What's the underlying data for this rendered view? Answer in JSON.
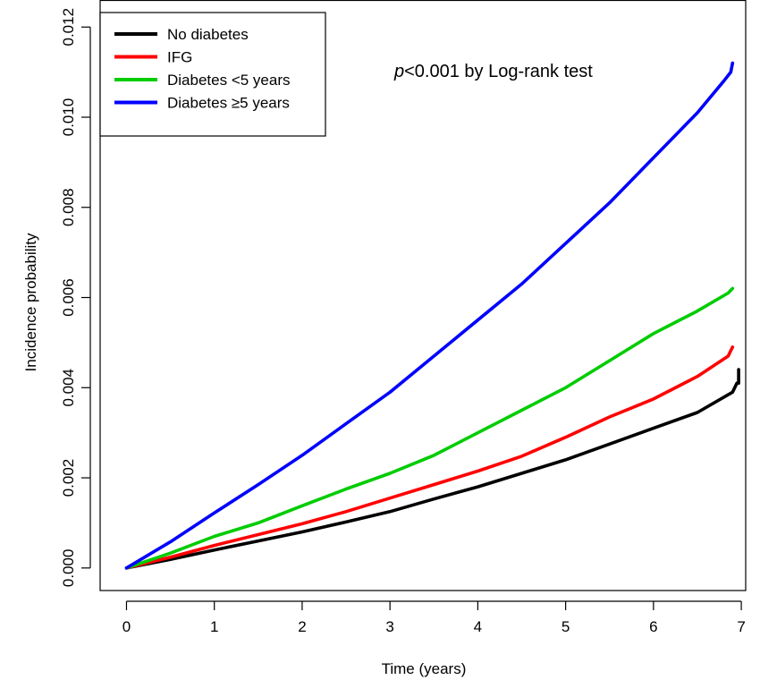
{
  "chart_data": {
    "type": "line",
    "title": "",
    "xlabel": "Time (years)",
    "ylabel": "Incidence probability",
    "xlim": [
      -0.3,
      7.05
    ],
    "ylim": [
      -0.0005,
      0.0126
    ],
    "xticks": [
      0,
      1,
      2,
      3,
      4,
      5,
      6,
      7
    ],
    "xtick_labels": [
      "0",
      "1",
      "2",
      "3",
      "4",
      "5",
      "6",
      "7"
    ],
    "yticks": [
      0.0,
      0.002,
      0.004,
      0.006,
      0.008,
      0.01,
      0.012
    ],
    "ytick_labels": [
      "0.000",
      "0.002",
      "0.004",
      "0.006",
      "0.008",
      "0.010",
      "0.012"
    ],
    "grid": false,
    "legend_position": "top-left",
    "annotation": {
      "prefix": "p",
      "text": "<0.001 by Log-rank test"
    },
    "series": [
      {
        "name": "No diabetes",
        "color": "#000000",
        "x": [
          0,
          0.5,
          1,
          1.5,
          2,
          2.5,
          3,
          3.5,
          4,
          4.5,
          5,
          5.5,
          6,
          6.5,
          6.9,
          6.95,
          6.97,
          6.97
        ],
        "y": [
          0,
          0.00019,
          0.0004,
          0.0006,
          0.0008,
          0.00102,
          0.00125,
          0.00153,
          0.0018,
          0.0021,
          0.0024,
          0.00275,
          0.0031,
          0.00345,
          0.0039,
          0.0041,
          0.0041,
          0.0044
        ]
      },
      {
        "name": "IFG",
        "color": "#ff0000",
        "x": [
          0,
          0.5,
          1,
          1.5,
          2,
          2.5,
          3,
          3.5,
          4,
          4.5,
          5,
          5.5,
          6,
          6.5,
          6.85,
          6.9
        ],
        "y": [
          0,
          0.00024,
          0.0005,
          0.00074,
          0.00098,
          0.00125,
          0.00155,
          0.00185,
          0.00215,
          0.00248,
          0.0029,
          0.00335,
          0.00375,
          0.00425,
          0.0047,
          0.0049
        ]
      },
      {
        "name": "Diabetes <5 years",
        "color": "#00cc00",
        "x": [
          0,
          0.5,
          1,
          1.5,
          2,
          2.5,
          3,
          3.5,
          4,
          4.5,
          5,
          5.5,
          6,
          6.5,
          6.85,
          6.9
        ],
        "y": [
          0,
          0.00033,
          0.0007,
          0.001,
          0.00138,
          0.00175,
          0.0021,
          0.0025,
          0.003,
          0.0035,
          0.004,
          0.0046,
          0.0052,
          0.0057,
          0.0061,
          0.0062
        ]
      },
      {
        "name": "Diabetes ≥5 years",
        "color": "#0000ff",
        "x": [
          0,
          0.5,
          1,
          1.5,
          2,
          2.5,
          3,
          3.5,
          4,
          4.5,
          5,
          5.5,
          6,
          6.5,
          6.8,
          6.88,
          6.9
        ],
        "y": [
          0,
          0.00058,
          0.00122,
          0.00185,
          0.0025,
          0.0032,
          0.0039,
          0.0047,
          0.0055,
          0.0063,
          0.0072,
          0.0081,
          0.0091,
          0.0101,
          0.0108,
          0.011,
          0.0112
        ]
      }
    ]
  }
}
